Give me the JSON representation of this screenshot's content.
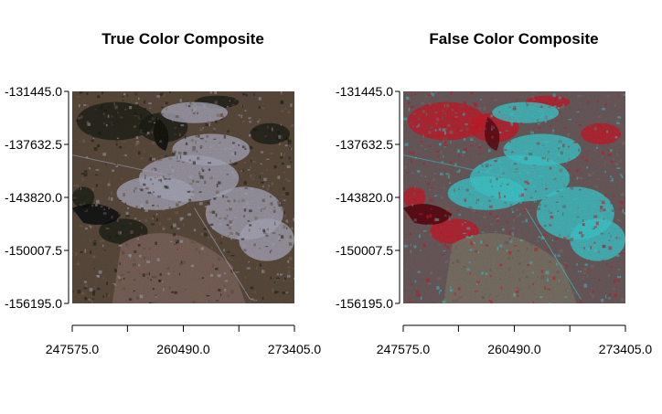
{
  "chart_data": [
    {
      "type": "raster",
      "title": "True Color Composite",
      "composite": "true-color",
      "xlim": [
        247575.0,
        273405.0
      ],
      "ylim": [
        -156195.0,
        -131445.0
      ],
      "x_ticks": [
        247575.0,
        253992.5,
        260490.0,
        266947.5,
        273405.0
      ],
      "x_tick_labels": [
        "247575.0",
        "",
        "260490.0",
        "",
        "273405.0"
      ],
      "y_ticks": [
        -131445.0,
        -137632.5,
        -143820.0,
        -150007.5,
        -156195.0
      ],
      "y_tick_labels": [
        "-131445.0",
        "-137632.5",
        "-143820.0",
        "-150007.5",
        "-156195.0"
      ],
      "colors": {
        "bg": "#5a4a3c",
        "vegetation": "#1a1e14",
        "urban": "#a8a6b8",
        "soil": "#7a6258",
        "river": "#111111"
      }
    },
    {
      "type": "raster",
      "title": "False Color Composite",
      "composite": "false-color",
      "xlim": [
        247575.0,
        273405.0
      ],
      "ylim": [
        -156195.0,
        -131445.0
      ],
      "x_ticks": [
        247575.0,
        253992.5,
        260490.0,
        266947.5,
        273405.0
      ],
      "x_tick_labels": [
        "247575.0",
        "",
        "260490.0",
        "",
        "273405.0"
      ],
      "y_ticks": [
        -131445.0,
        -137632.5,
        -143820.0,
        -150007.5,
        -156195.0
      ],
      "y_tick_labels": [
        "-131445.0",
        "-137632.5",
        "-143820.0",
        "-150007.5",
        "-156195.0"
      ],
      "colors": {
        "bg": "#6a5a5c",
        "vegetation": "#c81828",
        "urban": "#3ec8cc",
        "soil": "#7a7264",
        "river": "#5a0810"
      }
    }
  ]
}
